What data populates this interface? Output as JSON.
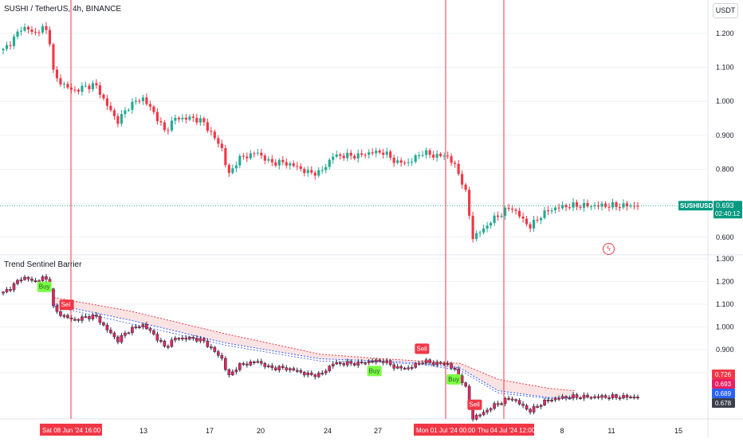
{
  "header": {
    "symbol_title": "SUSHI / TetherUS, 4h, BINANCE",
    "currency_label": "USDT",
    "indicator_title": "Trend Sentinel Barrier"
  },
  "colors": {
    "up": "#22ab94",
    "down": "#f23645",
    "vline": "#f23645",
    "band_fill": "#fbdcdc",
    "upper_line": "#f23645",
    "lower_line": "#2962ff",
    "mid_line": "#5b6ef0",
    "ind_candle_border": "#2a2e39",
    "ind_candle_fill": "#e3265f",
    "grid": "#eef0f3",
    "price_tag": "#089981",
    "buy_tag": "#7cfc45",
    "sell_tag": "#f23645",
    "tag_upper": "#f23645",
    "tag_close": "#e91e63",
    "tag_lower": "#2962ff",
    "tag_dark": "#3c3f4a"
  },
  "chart_data": [
    {
      "type": "candlestick",
      "name": "SUSHIUSDT",
      "y_ticks": [
        "1.200",
        "1.100",
        "1.000",
        "0.900",
        "0.800",
        "0.700",
        "0.600"
      ],
      "ylim": [
        0.56,
        1.27
      ],
      "last_price_label": "SUSHIUSDT",
      "last_price": "0.693",
      "countdown": "02:40:12",
      "grid": true,
      "close_path": [
        [
          0,
          1.15
        ],
        [
          0.015,
          1.18
        ],
        [
          0.03,
          1.22
        ],
        [
          0.05,
          1.2
        ],
        [
          0.065,
          1.22
        ],
        [
          0.075,
          1.17
        ],
        [
          0.08,
          1.07
        ],
        [
          0.095,
          1.05
        ],
        [
          0.11,
          1.03
        ],
        [
          0.125,
          1.04
        ],
        [
          0.145,
          1.05
        ],
        [
          0.16,
          1.0
        ],
        [
          0.18,
          0.94
        ],
        [
          0.2,
          0.99
        ],
        [
          0.22,
          1.01
        ],
        [
          0.24,
          0.96
        ],
        [
          0.255,
          0.91
        ],
        [
          0.27,
          0.95
        ],
        [
          0.3,
          0.95
        ],
        [
          0.315,
          0.94
        ],
        [
          0.33,
          0.9
        ],
        [
          0.345,
          0.86
        ],
        [
          0.355,
          0.78
        ],
        [
          0.37,
          0.83
        ],
        [
          0.385,
          0.84
        ],
        [
          0.4,
          0.85
        ],
        [
          0.42,
          0.82
        ],
        [
          0.44,
          0.82
        ],
        [
          0.46,
          0.81
        ],
        [
          0.48,
          0.79
        ],
        [
          0.5,
          0.79
        ],
        [
          0.52,
          0.84
        ],
        [
          0.54,
          0.84
        ],
        [
          0.56,
          0.84
        ],
        [
          0.58,
          0.85
        ],
        [
          0.6,
          0.85
        ],
        [
          0.62,
          0.82
        ],
        [
          0.64,
          0.82
        ],
        [
          0.66,
          0.85
        ],
        [
          0.68,
          0.84
        ],
        [
          0.7,
          0.84
        ],
        [
          0.715,
          0.8
        ],
        [
          0.728,
          0.74
        ],
        [
          0.74,
          0.6
        ],
        [
          0.755,
          0.62
        ],
        [
          0.77,
          0.65
        ],
        [
          0.785,
          0.67
        ],
        [
          0.8,
          0.69
        ],
        [
          0.815,
          0.66
        ],
        [
          0.83,
          0.63
        ],
        [
          0.845,
          0.66
        ],
        [
          0.86,
          0.68
        ],
        [
          0.88,
          0.69
        ],
        [
          0.895,
          0.693
        ]
      ],
      "vertical_markers": [
        "Sat 08 Jun '24  16:00",
        "Mon 01 Jul '24  00:00",
        "Thu 04 Jul '24  12:00"
      ]
    },
    {
      "type": "line",
      "name": "Trend Sentinel Barrier",
      "y_ticks": [
        "1.300",
        "1.200",
        "1.100",
        "1.000",
        "0.900",
        "0.800"
      ],
      "ylim": [
        0.61,
        1.31
      ],
      "series": [
        {
          "values": [
            [
              0.08,
              1.13
            ],
            [
              0.2,
              1.07
            ],
            [
              0.35,
              0.97
            ],
            [
              0.5,
              0.88
            ],
            [
              0.6,
              0.86
            ],
            [
              0.66,
              0.85
            ],
            [
              0.72,
              0.84
            ],
            [
              0.78,
              0.77
            ],
            [
              0.86,
              0.73
            ],
            [
              0.9,
              0.72
            ]
          ]
        },
        {
          "values": [
            [
              0.08,
              1.1
            ],
            [
              0.2,
              1.03
            ],
            [
              0.35,
              0.93
            ],
            [
              0.5,
              0.86
            ],
            [
              0.6,
              0.85
            ],
            [
              0.66,
              0.84
            ],
            [
              0.72,
              0.82
            ],
            [
              0.78,
              0.72
            ],
            [
              0.86,
              0.69
            ],
            [
              0.9,
              0.69
            ]
          ]
        },
        {
          "values": [
            [
              0.08,
              1.09
            ],
            [
              0.2,
              1.015
            ],
            [
              0.35,
              0.92
            ],
            [
              0.5,
              0.85
            ],
            [
              0.6,
              0.845
            ],
            [
              0.66,
              0.835
            ],
            [
              0.72,
              0.81
            ],
            [
              0.78,
              0.71
            ],
            [
              0.86,
              0.685
            ],
            [
              0.9,
              0.688
            ]
          ]
        }
      ],
      "signals": [
        {
          "label": "Buy",
          "at": 0.065
        },
        {
          "label": "Sell",
          "at": 0.1
        },
        {
          "label": "Sell",
          "at": 0.66
        },
        {
          "label": "Buy",
          "at": 0.585
        },
        {
          "label": "Buy",
          "at": 0.71
        },
        {
          "label": "Sell",
          "at": 0.743
        }
      ],
      "price_tags": [
        "0.726",
        "0.693",
        "0.689",
        "0.678"
      ]
    }
  ],
  "x_axis": {
    "labels": [
      "13",
      "17",
      "20",
      "24",
      "27",
      "8",
      "11",
      "15"
    ],
    "highlight_labels": [
      "Sat 08 Jun '24  16:00",
      "Mon 01 Jul '24  00:00",
      "Thu 04 Jul '24  12:00"
    ]
  }
}
